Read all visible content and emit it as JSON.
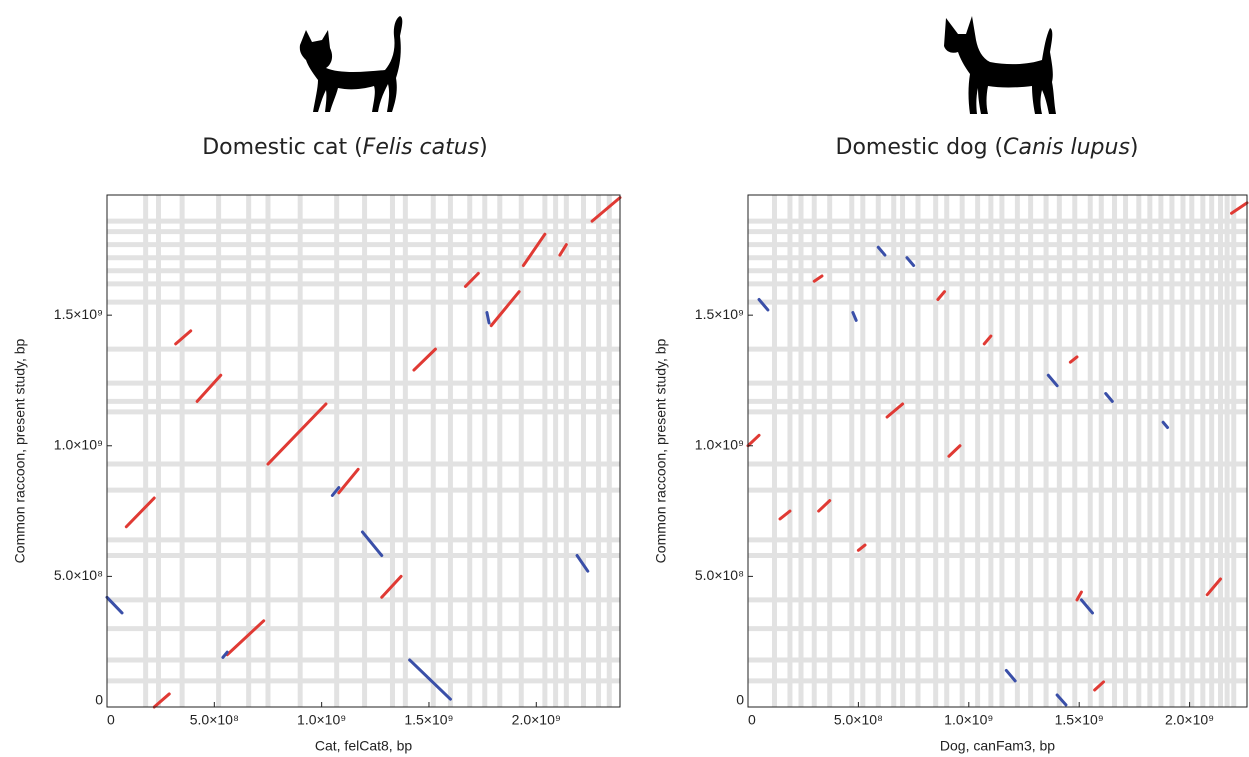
{
  "chart_data": [
    {
      "type": "dotplot",
      "title": [
        {
          "text": "Domestic cat ("
        },
        {
          "text": "Felis catus",
          "italic": true
        },
        {
          "text": ")"
        }
      ],
      "xlabel": "Cat, felCat8, bp",
      "ylabel": "Common raccoon, present study, bp",
      "xlim": [
        0,
        2390000000
      ],
      "ylim": [
        0,
        1960000000
      ],
      "xticks": [
        0,
        {
          "value": 500000000,
          "label": "5.0×10⁸"
        },
        {
          "value": 1000000000,
          "label": "1.0×10⁹"
        },
        {
          "value": 1500000000,
          "label": "1.5×10⁹"
        },
        {
          "value": 2000000000,
          "label": "2.0×10⁹"
        }
      ],
      "yticks": [
        0,
        {
          "value": 500000000,
          "label": "5.0×10⁸"
        },
        {
          "value": 1000000000,
          "label": "1.0×10⁹"
        },
        {
          "value": 1500000000,
          "label": "1.5×10⁹"
        }
      ],
      "grid_color": "#e2e2e2",
      "xgrid": [
        180000000,
        240000000,
        350000000,
        520000000,
        660000000,
        750000000,
        900000000,
        1070000000,
        1200000000,
        1330000000,
        1390000000,
        1520000000,
        1600000000,
        1690000000,
        1760000000,
        1830000000,
        1930000000,
        2040000000,
        2090000000,
        2140000000,
        2220000000,
        2290000000,
        2340000000
      ],
      "ygrid": [
        100000000,
        180000000,
        300000000,
        410000000,
        580000000,
        640000000,
        830000000,
        930000000,
        1130000000,
        1170000000,
        1240000000,
        1370000000,
        1550000000,
        1620000000,
        1670000000,
        1720000000,
        1770000000,
        1820000000,
        1860000000
      ],
      "segments": [
        {
          "x": [
            90000000,
            220000000
          ],
          "y": [
            690000000,
            800000000
          ],
          "color": "#e03a34"
        },
        {
          "x": [
            320000000,
            390000000
          ],
          "y": [
            1390000000,
            1440000000
          ],
          "color": "#e03a34"
        },
        {
          "x": [
            420000000,
            530000000
          ],
          "y": [
            1170000000,
            1270000000
          ],
          "color": "#e03a34"
        },
        {
          "x": [
            750000000,
            1020000000
          ],
          "y": [
            930000000,
            1160000000
          ],
          "color": "#e03a34"
        },
        {
          "x": [
            1080000000,
            1170000000
          ],
          "y": [
            820000000,
            910000000
          ],
          "color": "#e03a34"
        },
        {
          "x": [
            560000000,
            730000000
          ],
          "y": [
            200000000,
            330000000
          ],
          "color": "#e03a34"
        },
        {
          "x": [
            220000000,
            290000000
          ],
          "y": [
            0,
            50000000
          ],
          "color": "#e03a34"
        },
        {
          "x": [
            1280000000,
            1370000000
          ],
          "y": [
            420000000,
            500000000
          ],
          "color": "#e03a34"
        },
        {
          "x": [
            1430000000,
            1530000000
          ],
          "y": [
            1290000000,
            1370000000
          ],
          "color": "#e03a34"
        },
        {
          "x": [
            1670000000,
            1730000000
          ],
          "y": [
            1610000000,
            1660000000
          ],
          "color": "#e03a34"
        },
        {
          "x": [
            1790000000,
            1920000000
          ],
          "y": [
            1460000000,
            1590000000
          ],
          "color": "#e03a34"
        },
        {
          "x": [
            1940000000,
            2040000000
          ],
          "y": [
            1690000000,
            1810000000
          ],
          "color": "#e03a34"
        },
        {
          "x": [
            2110000000,
            2140000000
          ],
          "y": [
            1730000000,
            1770000000
          ],
          "color": "#e03a34"
        },
        {
          "x": [
            2260000000,
            2390000000
          ],
          "y": [
            1860000000,
            1950000000
          ],
          "color": "#e03a34"
        },
        {
          "x": [
            1050000000,
            1080000000
          ],
          "y": [
            810000000,
            840000000
          ],
          "color": "#3a4fa8"
        },
        {
          "x": [
            540000000,
            560000000
          ],
          "y": [
            190000000,
            210000000
          ],
          "color": "#3a4fa8"
        },
        {
          "x": [
            0,
            70000000
          ],
          "y": [
            420000000,
            360000000
          ],
          "color": "#3a4fa8"
        },
        {
          "x": [
            1190000000,
            1280000000
          ],
          "y": [
            670000000,
            580000000
          ],
          "color": "#3a4fa8"
        },
        {
          "x": [
            1410000000,
            1600000000
          ],
          "y": [
            180000000,
            30000000
          ],
          "color": "#3a4fa8"
        },
        {
          "x": [
            2190000000,
            2240000000
          ],
          "y": [
            580000000,
            520000000
          ],
          "color": "#3a4fa8"
        },
        {
          "x": [
            1770000000,
            1780000000
          ],
          "y": [
            1510000000,
            1470000000
          ],
          "color": "#3a4fa8"
        }
      ]
    },
    {
      "type": "dotplot",
      "title": [
        {
          "text": "Domestic dog ("
        },
        {
          "text": "Canis lupus",
          "italic": true
        },
        {
          "text": ")"
        }
      ],
      "xlabel": "Dog, canFam3, bp",
      "ylabel": "Common raccoon, present study, bp",
      "xlim": [
        0,
        2260000000
      ],
      "ylim": [
        0,
        1960000000
      ],
      "xticks": [
        0,
        {
          "value": 500000000,
          "label": "5.0×10⁸"
        },
        {
          "value": 1000000000,
          "label": "1.0×10⁹"
        },
        {
          "value": 1500000000,
          "label": "1.5×10⁹"
        },
        {
          "value": 2000000000,
          "label": "2.0×10⁹"
        }
      ],
      "yticks": [
        0,
        {
          "value": 500000000,
          "label": "5.0×10⁸"
        },
        {
          "value": 1000000000,
          "label": "1.0×10⁹"
        },
        {
          "value": 1500000000,
          "label": "1.5×10⁹"
        }
      ],
      "grid_color": "#e2e2e2",
      "xgrid": [
        120000000,
        190000000,
        240000000,
        300000000,
        370000000,
        470000000,
        520000000,
        590000000,
        660000000,
        700000000,
        770000000,
        850000000,
        900000000,
        970000000,
        1040000000,
        1100000000,
        1150000000,
        1220000000,
        1280000000,
        1350000000,
        1410000000,
        1480000000,
        1550000000,
        1600000000,
        1660000000,
        1710000000,
        1770000000,
        1820000000,
        1870000000,
        1920000000,
        1970000000,
        2010000000,
        2060000000,
        2100000000,
        2140000000,
        2170000000,
        2200000000
      ],
      "ygrid": [
        100000000,
        180000000,
        300000000,
        410000000,
        580000000,
        640000000,
        830000000,
        930000000,
        1130000000,
        1170000000,
        1240000000,
        1370000000,
        1550000000,
        1620000000,
        1670000000,
        1720000000,
        1770000000,
        1820000000,
        1860000000
      ],
      "segments": [
        {
          "x": [
            2190000000,
            2260000000
          ],
          "y": [
            1890000000,
            1930000000
          ],
          "color": "#e03a34"
        },
        {
          "x": [
            300000000,
            335000000
          ],
          "y": [
            1630000000,
            1650000000
          ],
          "color": "#e03a34"
        },
        {
          "x": [
            860000000,
            890000000
          ],
          "y": [
            1560000000,
            1590000000
          ],
          "color": "#e03a34"
        },
        {
          "x": [
            1070000000,
            1100000000
          ],
          "y": [
            1390000000,
            1420000000
          ],
          "color": "#e03a34"
        },
        {
          "x": [
            1460000000,
            1490000000
          ],
          "y": [
            1320000000,
            1340000000
          ],
          "color": "#e03a34"
        },
        {
          "x": [
            630000000,
            700000000
          ],
          "y": [
            1110000000,
            1160000000
          ],
          "color": "#e03a34"
        },
        {
          "x": [
            910000000,
            960000000
          ],
          "y": [
            960000000,
            1000000000
          ],
          "color": "#e03a34"
        },
        {
          "x": [
            0,
            50000000
          ],
          "y": [
            1000000000,
            1040000000
          ],
          "color": "#e03a34"
        },
        {
          "x": [
            145000000,
            190000000
          ],
          "y": [
            720000000,
            750000000
          ],
          "color": "#e03a34"
        },
        {
          "x": [
            320000000,
            370000000
          ],
          "y": [
            750000000,
            790000000
          ],
          "color": "#e03a34"
        },
        {
          "x": [
            500000000,
            530000000
          ],
          "y": [
            600000000,
            620000000
          ],
          "color": "#e03a34"
        },
        {
          "x": [
            1490000000,
            1510000000
          ],
          "y": [
            410000000,
            440000000
          ],
          "color": "#e03a34"
        },
        {
          "x": [
            1570000000,
            1610000000
          ],
          "y": [
            65000000,
            96000000
          ],
          "color": "#e03a34"
        },
        {
          "x": [
            2080000000,
            2140000000
          ],
          "y": [
            430000000,
            490000000
          ],
          "color": "#e03a34"
        },
        {
          "x": [
            1400000000,
            1440000000
          ],
          "y": [
            46000000,
            8000000
          ],
          "color": "#3a4fa8"
        },
        {
          "x": [
            1510000000,
            1560000000
          ],
          "y": [
            410000000,
            360000000
          ],
          "color": "#3a4fa8"
        },
        {
          "x": [
            1360000000,
            1400000000
          ],
          "y": [
            1270000000,
            1230000000
          ],
          "color": "#3a4fa8"
        },
        {
          "x": [
            1620000000,
            1650000000
          ],
          "y": [
            1200000000,
            1170000000
          ],
          "color": "#3a4fa8"
        },
        {
          "x": [
            1880000000,
            1900000000
          ],
          "y": [
            1090000000,
            1070000000
          ],
          "color": "#3a4fa8"
        },
        {
          "x": [
            590000000,
            620000000
          ],
          "y": [
            1760000000,
            1730000000
          ],
          "color": "#3a4fa8"
        },
        {
          "x": [
            720000000,
            750000000
          ],
          "y": [
            1720000000,
            1690000000
          ],
          "color": "#3a4fa8"
        },
        {
          "x": [
            475000000,
            490000000
          ],
          "y": [
            1510000000,
            1480000000
          ],
          "color": "#3a4fa8"
        },
        {
          "x": [
            50000000,
            90000000
          ],
          "y": [
            1560000000,
            1520000000
          ],
          "color": "#3a4fa8"
        },
        {
          "x": [
            1170000000,
            1210000000
          ],
          "y": [
            140000000,
            100000000
          ],
          "color": "#3a4fa8"
        }
      ]
    }
  ]
}
